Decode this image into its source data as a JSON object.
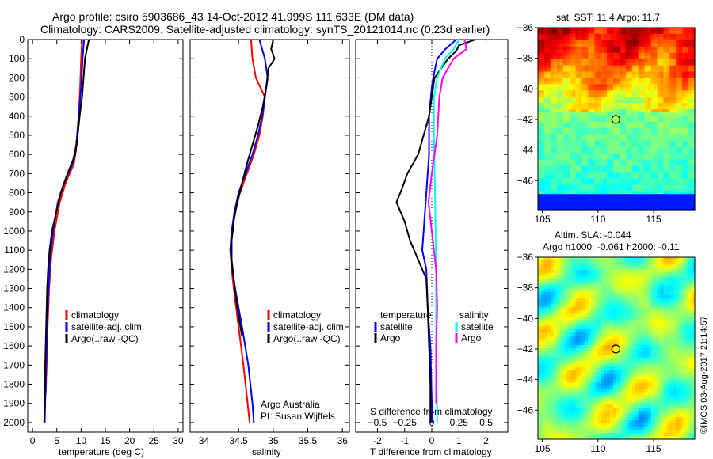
{
  "title": {
    "line1": "Argo profile: csiro 5903686_43 14-Oct-2012 41.999S 111.633E (DM data)",
    "line2": "Climatology: CARS2009. Satellite-adjusted climatology: synTS_20121014.nc (0.23d earlier)"
  },
  "colors": {
    "climatology": "#ff0000",
    "satellite": "#0000ff",
    "argo": "#000000",
    "s_satellite": "#00ffff",
    "s_argo": "#ff00ff"
  },
  "chart_data": [
    {
      "type": "line",
      "name": "temperature",
      "xlabel": "temperature (deg C)",
      "xlim": [
        -1,
        31
      ],
      "ylim": [
        2050,
        0
      ],
      "xticks": [
        0,
        5,
        10,
        15,
        20,
        25,
        30
      ],
      "yticks": [
        0,
        100,
        200,
        300,
        400,
        500,
        600,
        700,
        800,
        900,
        1000,
        1100,
        1200,
        1300,
        1400,
        1500,
        1600,
        1700,
        1800,
        1900,
        2000
      ],
      "legend": [
        "climatology",
        "satellite-adj. clim.",
        "Argo(..raw -QC)"
      ],
      "series": [
        {
          "name": "climatology",
          "color": "#ff0000",
          "points": [
            [
              0,
              10.2
            ],
            [
              100,
              10.0
            ],
            [
              250,
              9.8
            ],
            [
              400,
              9.5
            ],
            [
              550,
              9.1
            ],
            [
              650,
              8.5
            ],
            [
              750,
              6.8
            ],
            [
              850,
              5.6
            ],
            [
              1000,
              4.5
            ],
            [
              1150,
              3.8
            ],
            [
              1300,
              3.4
            ],
            [
              1500,
              3.1
            ],
            [
              1700,
              2.9
            ],
            [
              1850,
              2.7
            ]
          ]
        },
        {
          "name": "satellite-adj. clim.",
          "color": "#0000ff",
          "points": [
            [
              0,
              10.6
            ],
            [
              100,
              10.3
            ],
            [
              250,
              10.0
            ],
            [
              400,
              9.5
            ],
            [
              550,
              9.0
            ],
            [
              650,
              8.2
            ],
            [
              750,
              6.5
            ],
            [
              850,
              5.2
            ],
            [
              1000,
              4.2
            ],
            [
              1150,
              3.6
            ],
            [
              1300,
              3.3
            ],
            [
              1500,
              3.0
            ],
            [
              1700,
              2.8
            ],
            [
              1900,
              2.6
            ],
            [
              2000,
              2.5
            ]
          ]
        },
        {
          "name": "Argo(..raw -QC)",
          "color": "#000000",
          "points": [
            [
              0,
              11.6
            ],
            [
              50,
              11.2
            ],
            [
              100,
              10.8
            ],
            [
              200,
              10.5
            ],
            [
              300,
              10.2
            ],
            [
              400,
              9.7
            ],
            [
              500,
              9.3
            ],
            [
              600,
              8.8
            ],
            [
              700,
              7.2
            ],
            [
              800,
              5.8
            ],
            [
              900,
              4.9
            ],
            [
              1000,
              4.0
            ],
            [
              1100,
              3.5
            ],
            [
              1200,
              3.2
            ],
            [
              1300,
              3.0
            ],
            [
              1500,
              2.8
            ],
            [
              1700,
              2.6
            ],
            [
              1900,
              2.5
            ],
            [
              2000,
              2.4
            ]
          ]
        }
      ]
    },
    {
      "type": "line",
      "name": "salinity",
      "xlabel": "salinity",
      "xlim": [
        33.8,
        36.1
      ],
      "ylim": [
        2050,
        0
      ],
      "xticks": [
        34,
        34.5,
        35,
        35.5,
        36
      ],
      "legend": [
        "climatology",
        "satellite-adj. clim.",
        "Argo(..raw -QC)"
      ],
      "annotation": [
        "Argo Australia",
        "PI: Susan Wijffels"
      ],
      "series": [
        {
          "name": "climatology",
          "color": "#ff0000",
          "points": [
            [
              0,
              34.68
            ],
            [
              100,
              34.7
            ],
            [
              200,
              34.75
            ],
            [
              300,
              34.88
            ],
            [
              400,
              34.85
            ],
            [
              500,
              34.8
            ],
            [
              600,
              34.72
            ],
            [
              700,
              34.62
            ],
            [
              800,
              34.52
            ],
            [
              900,
              34.45
            ],
            [
              1000,
              34.4
            ],
            [
              1100,
              34.38
            ],
            [
              1200,
              34.4
            ],
            [
              1300,
              34.43
            ],
            [
              1500,
              34.5
            ],
            [
              1700,
              34.57
            ],
            [
              1900,
              34.63
            ],
            [
              2000,
              34.66
            ]
          ]
        },
        {
          "name": "satellite-adj. clim.",
          "color": "#0000ff",
          "points": [
            [
              0,
              34.8
            ],
            [
              100,
              34.88
            ],
            [
              200,
              34.92
            ],
            [
              300,
              34.88
            ],
            [
              400,
              34.84
            ],
            [
              500,
              34.78
            ],
            [
              600,
              34.7
            ],
            [
              700,
              34.6
            ],
            [
              800,
              34.5
            ],
            [
              900,
              34.44
            ],
            [
              1000,
              34.4
            ],
            [
              1100,
              34.38
            ],
            [
              1200,
              34.41
            ],
            [
              1300,
              34.45
            ],
            [
              1500,
              34.55
            ],
            [
              1700,
              34.64
            ],
            [
              1900,
              34.7
            ],
            [
              2000,
              34.72
            ]
          ]
        },
        {
          "name": "Argo(..raw -QC)",
          "color": "#000000",
          "points": [
            [
              0,
              35.0
            ],
            [
              50,
              34.97
            ],
            [
              100,
              35.02
            ],
            [
              150,
              34.93
            ],
            [
              250,
              34.9
            ],
            [
              350,
              34.85
            ],
            [
              450,
              34.78
            ],
            [
              550,
              34.7
            ],
            [
              650,
              34.62
            ],
            [
              750,
              34.55
            ],
            [
              850,
              34.48
            ],
            [
              950,
              34.43
            ],
            [
              1050,
              34.4
            ],
            [
              1150,
              34.4
            ],
            [
              1250,
              34.43
            ],
            [
              1400,
              34.48
            ],
            [
              1550,
              34.55
            ]
          ]
        }
      ]
    },
    {
      "type": "line",
      "name": "differences",
      "xlabel": "T difference from climatology",
      "x2label": "S difference from climatology",
      "xlim": [
        -2.8,
        2.8
      ],
      "ylim": [
        2050,
        0
      ],
      "xticks": [
        -2,
        -1,
        0,
        1,
        2
      ],
      "x2ticks": [
        -0.5,
        -0.25,
        0,
        0.25,
        0.5
      ],
      "legend_titles": [
        "temperature",
        "salinity"
      ],
      "legend": [
        "satellite",
        "Argo",
        "satellite",
        "Argo"
      ],
      "series": [
        {
          "name": "T satellite",
          "axis": "T",
          "color": "#0000ff",
          "points": [
            [
              0,
              0.9
            ],
            [
              50,
              0.5
            ],
            [
              100,
              0.2
            ],
            [
              200,
              0.05
            ],
            [
              250,
              0.0
            ],
            [
              400,
              -0.1
            ],
            [
              600,
              -0.1
            ],
            [
              800,
              -0.2
            ],
            [
              1000,
              -0.3
            ],
            [
              1100,
              -0.35
            ],
            [
              1200,
              -0.2
            ],
            [
              1400,
              -0.15
            ],
            [
              1600,
              -0.05
            ],
            [
              1900,
              0.0
            ],
            [
              2000,
              0.0
            ]
          ]
        },
        {
          "name": "T Argo",
          "axis": "T",
          "color": "#000000",
          "points": [
            [
              0,
              1.6
            ],
            [
              30,
              1.0
            ],
            [
              60,
              0.9
            ],
            [
              100,
              0.6
            ],
            [
              200,
              0.1
            ],
            [
              300,
              0.0
            ],
            [
              400,
              -0.1
            ],
            [
              500,
              -0.3
            ],
            [
              600,
              -0.5
            ],
            [
              700,
              -0.9
            ],
            [
              780,
              -1.1
            ],
            [
              850,
              -1.3
            ],
            [
              950,
              -1.0
            ],
            [
              1050,
              -0.8
            ],
            [
              1150,
              -0.5
            ],
            [
              1250,
              -0.2
            ],
            [
              1400,
              -0.15
            ],
            [
              1600,
              -0.1
            ],
            [
              1800,
              -0.05
            ],
            [
              2000,
              -0.05
            ]
          ]
        },
        {
          "name": "S satellite",
          "axis": "S",
          "color": "#00ffff",
          "points": [
            [
              0,
              0.25
            ],
            [
              50,
              0.2
            ],
            [
              100,
              0.12
            ],
            [
              200,
              0.05
            ],
            [
              300,
              0.02
            ],
            [
              500,
              0.02
            ],
            [
              800,
              0.03
            ],
            [
              1200,
              0.04
            ],
            [
              1600,
              0.04
            ],
            [
              2000,
              0.05
            ]
          ]
        },
        {
          "name": "S Argo",
          "axis": "S",
          "color": "#ff00ff",
          "points": [
            [
              0,
              0.3
            ],
            [
              50,
              0.32
            ],
            [
              100,
              0.2
            ],
            [
              200,
              0.1
            ],
            [
              300,
              0.07
            ],
            [
              500,
              0.05
            ],
            [
              700,
              0.0
            ],
            [
              850,
              -0.03
            ],
            [
              1000,
              0.0
            ],
            [
              1200,
              0.04
            ],
            [
              1400,
              0.05
            ],
            [
              1600,
              0.04
            ],
            [
              1900,
              0.04
            ]
          ]
        }
      ]
    },
    {
      "type": "heatmap",
      "name": "sst-map",
      "title": "sat. SST: 11.4 Argo: 11.7",
      "xlim": [
        104.6,
        118.7
      ],
      "ylim": [
        -47.9,
        -36
      ],
      "xticks": [
        105,
        110,
        115
      ],
      "yticks": [
        -36,
        -38,
        -40,
        -42,
        -44,
        -46
      ],
      "marker": [
        111.6,
        -42.0
      ]
    },
    {
      "type": "heatmap",
      "name": "sla-map",
      "title": "Altim. SLA: -0.044",
      "subtitle": "Argo h1000: -0.061 h2000: -0.11",
      "xlim": [
        104.6,
        118.7
      ],
      "ylim": [
        -47.9,
        -36
      ],
      "xticks": [
        105,
        110,
        115
      ],
      "yticks": [
        -36,
        -38,
        -40,
        -42,
        -44,
        -46
      ],
      "marker": [
        111.6,
        -42.0
      ]
    }
  ],
  "credit": "©IMOS 03-Aug-2017 21:14:57"
}
